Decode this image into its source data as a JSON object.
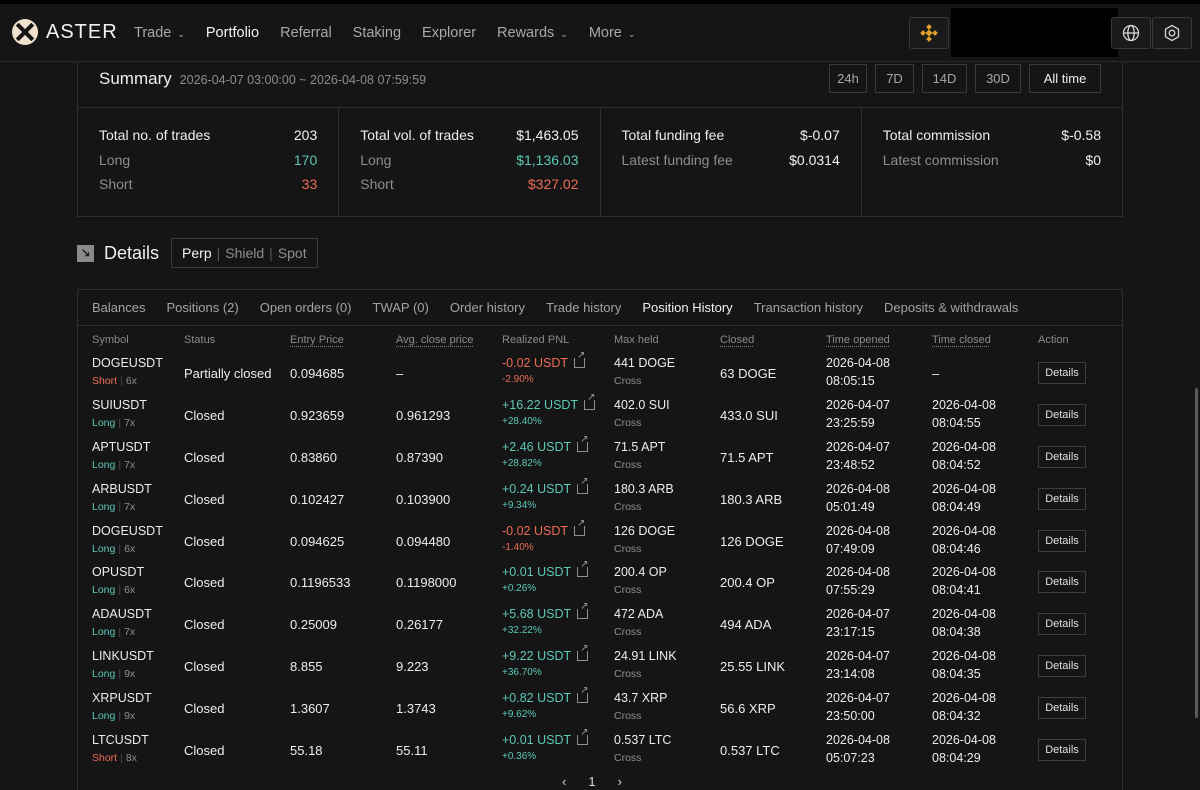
{
  "brand": "ASTER",
  "nav": [
    {
      "label": "Trade",
      "dropdown": true,
      "active": false
    },
    {
      "label": "Portfolio",
      "dropdown": false,
      "active": true
    },
    {
      "label": "Referral",
      "dropdown": false,
      "active": false
    },
    {
      "label": "Staking",
      "dropdown": false,
      "active": false
    },
    {
      "label": "Explorer",
      "dropdown": false,
      "active": false
    },
    {
      "label": "Rewards",
      "dropdown": true,
      "active": false
    },
    {
      "label": "More",
      "dropdown": true,
      "active": false
    }
  ],
  "nav_icons": [
    "bnb-chain-icon",
    "globe-icon",
    "settings-icon"
  ],
  "summary": {
    "title": "Summary",
    "range": "2026-04-07 03:00:00 ~ 2026-04-08 07:59:59",
    "range_buttons": [
      "24h",
      "7D",
      "14D",
      "30D",
      "All time"
    ],
    "active_range": "All time",
    "cells": [
      {
        "rows": [
          {
            "label": "Total no. of trades",
            "value": "203",
            "tone": ""
          },
          {
            "label": "Long",
            "value": "170",
            "tone": "green"
          },
          {
            "label": "Short",
            "value": "33",
            "tone": "red"
          }
        ]
      },
      {
        "rows": [
          {
            "label": "Total vol. of trades",
            "value": "$1,463.05",
            "tone": ""
          },
          {
            "label": "Long",
            "value": "$1,136.03",
            "tone": "green"
          },
          {
            "label": "Short",
            "value": "$327.02",
            "tone": "red"
          }
        ]
      },
      {
        "rows": [
          {
            "label": "Total funding fee",
            "value": "$-0.07",
            "tone": ""
          },
          {
            "label": "Latest funding fee",
            "value": "$0.0314",
            "tone": ""
          }
        ]
      },
      {
        "rows": [
          {
            "label": "Total commission",
            "value": "$-0.58",
            "tone": ""
          },
          {
            "label": "Latest commission",
            "value": "$0",
            "tone": ""
          }
        ]
      }
    ]
  },
  "details": {
    "title": "Details",
    "segments": [
      "Perp",
      "Shield",
      "Spot"
    ],
    "active_segment": "Perp"
  },
  "tabs": [
    "Balances",
    "Positions (2)",
    "Open orders (0)",
    "TWAP (0)",
    "Order history",
    "Trade history",
    "Position History",
    "Transaction history",
    "Deposits & withdrawals"
  ],
  "active_tab": "Position History",
  "columns": [
    "Symbol",
    "Status",
    "Entry Price",
    "Avg. close price",
    "Realized PNL",
    "Max held",
    "Closed",
    "Time opened",
    "Time closed",
    "Action"
  ],
  "rows": [
    {
      "symbol": "DOGEUSDT",
      "side": "Short",
      "lev": "6x",
      "status": "Partially closed",
      "entry": "0.094685",
      "avg_close": "–",
      "pnl": "-0.02 USDT",
      "pnl_pct": "-2.90%",
      "pnl_tone": "red",
      "max_held": "441 DOGE",
      "margin": "Cross",
      "closed": "63 DOGE",
      "opened_date": "2026-04-08",
      "opened_time": "08:05:15",
      "closed_date": "–",
      "closed_time": "",
      "action": "Details"
    },
    {
      "symbol": "SUIUSDT",
      "side": "Long",
      "lev": "7x",
      "status": "Closed",
      "entry": "0.923659",
      "avg_close": "0.961293",
      "pnl": "+16.22 USDT",
      "pnl_pct": "+28.40%",
      "pnl_tone": "green",
      "max_held": "402.0 SUI",
      "margin": "Cross",
      "closed": "433.0 SUI",
      "opened_date": "2026-04-07",
      "opened_time": "23:25:59",
      "closed_date": "2026-04-08",
      "closed_time": "08:04:55",
      "action": "Details"
    },
    {
      "symbol": "APTUSDT",
      "side": "Long",
      "lev": "7x",
      "status": "Closed",
      "entry": "0.83860",
      "avg_close": "0.87390",
      "pnl": "+2.46 USDT",
      "pnl_pct": "+28.82%",
      "pnl_tone": "green",
      "max_held": "71.5 APT",
      "margin": "Cross",
      "closed": "71.5 APT",
      "opened_date": "2026-04-07",
      "opened_time": "23:48:52",
      "closed_date": "2026-04-08",
      "closed_time": "08:04:52",
      "action": "Details"
    },
    {
      "symbol": "ARBUSDT",
      "side": "Long",
      "lev": "7x",
      "status": "Closed",
      "entry": "0.102427",
      "avg_close": "0.103900",
      "pnl": "+0.24 USDT",
      "pnl_pct": "+9.34%",
      "pnl_tone": "green",
      "max_held": "180.3 ARB",
      "margin": "Cross",
      "closed": "180.3 ARB",
      "opened_date": "2026-04-08",
      "opened_time": "05:01:49",
      "closed_date": "2026-04-08",
      "closed_time": "08:04:49",
      "action": "Details"
    },
    {
      "symbol": "DOGEUSDT",
      "side": "Long",
      "lev": "6x",
      "status": "Closed",
      "entry": "0.094625",
      "avg_close": "0.094480",
      "pnl": "-0.02 USDT",
      "pnl_pct": "-1.40%",
      "pnl_tone": "red",
      "max_held": "126 DOGE",
      "margin": "Cross",
      "closed": "126 DOGE",
      "opened_date": "2026-04-08",
      "opened_time": "07:49:09",
      "closed_date": "2026-04-08",
      "closed_time": "08:04:46",
      "action": "Details"
    },
    {
      "symbol": "OPUSDT",
      "side": "Long",
      "lev": "6x",
      "status": "Closed",
      "entry": "0.1196533",
      "avg_close": "0.1198000",
      "pnl": "+0.01 USDT",
      "pnl_pct": "+0.26%",
      "pnl_tone": "green",
      "max_held": "200.4 OP",
      "margin": "Cross",
      "closed": "200.4 OP",
      "opened_date": "2026-04-08",
      "opened_time": "07:55:29",
      "closed_date": "2026-04-08",
      "closed_time": "08:04:41",
      "action": "Details"
    },
    {
      "symbol": "ADAUSDT",
      "side": "Long",
      "lev": "7x",
      "status": "Closed",
      "entry": "0.25009",
      "avg_close": "0.26177",
      "pnl": "+5.68 USDT",
      "pnl_pct": "+32.22%",
      "pnl_tone": "green",
      "max_held": "472 ADA",
      "margin": "Cross",
      "closed": "494 ADA",
      "opened_date": "2026-04-07",
      "opened_time": "23:17:15",
      "closed_date": "2026-04-08",
      "closed_time": "08:04:38",
      "action": "Details"
    },
    {
      "symbol": "LINKUSDT",
      "side": "Long",
      "lev": "9x",
      "status": "Closed",
      "entry": "8.855",
      "avg_close": "9.223",
      "pnl": "+9.22 USDT",
      "pnl_pct": "+36.70%",
      "pnl_tone": "green",
      "max_held": "24.91 LINK",
      "margin": "Cross",
      "closed": "25.55 LINK",
      "opened_date": "2026-04-07",
      "opened_time": "23:14:08",
      "closed_date": "2026-04-08",
      "closed_time": "08:04:35",
      "action": "Details"
    },
    {
      "symbol": "XRPUSDT",
      "side": "Long",
      "lev": "9x",
      "status": "Closed",
      "entry": "1.3607",
      "avg_close": "1.3743",
      "pnl": "+0.82 USDT",
      "pnl_pct": "+9.62%",
      "pnl_tone": "green",
      "max_held": "43.7 XRP",
      "margin": "Cross",
      "closed": "56.6 XRP",
      "opened_date": "2026-04-07",
      "opened_time": "23:50:00",
      "closed_date": "2026-04-08",
      "closed_time": "08:04:32",
      "action": "Details"
    },
    {
      "symbol": "LTCUSDT",
      "side": "Short",
      "lev": "8x",
      "status": "Closed",
      "entry": "55.18",
      "avg_close": "55.11",
      "pnl": "+0.01 USDT",
      "pnl_pct": "+0.36%",
      "pnl_tone": "green",
      "max_held": "0.537 LTC",
      "margin": "Cross",
      "closed": "0.537 LTC",
      "opened_date": "2026-04-08",
      "opened_time": "05:07:23",
      "closed_date": "2026-04-08",
      "closed_time": "08:04:29",
      "action": "Details"
    }
  ],
  "pagination": {
    "page": "1"
  },
  "colors": {
    "long": "#5cc8b6",
    "short": "#ee6b56",
    "background": "#151516"
  }
}
